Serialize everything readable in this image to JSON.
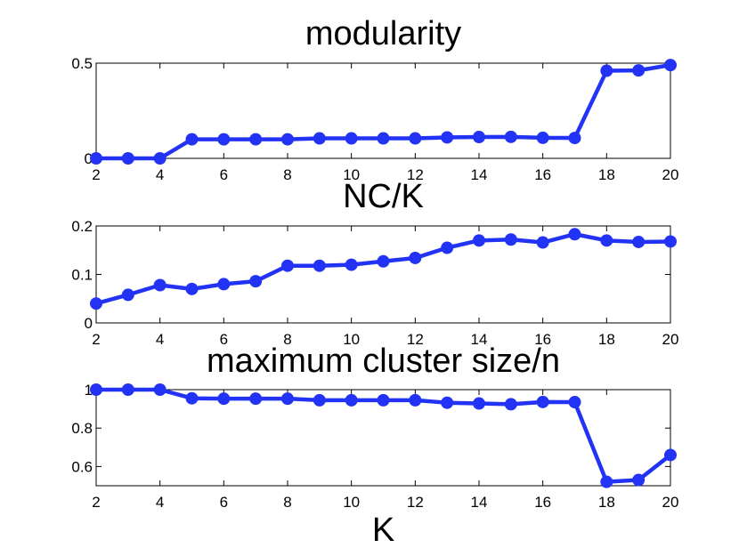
{
  "chart_data": [
    {
      "type": "line",
      "title": "modularity",
      "xlabel": "",
      "ylabel": "",
      "xlim": [
        2,
        20
      ],
      "ylim": [
        0,
        0.5
      ],
      "xticks": [
        2,
        4,
        6,
        8,
        10,
        12,
        14,
        16,
        18,
        20
      ],
      "xtick_labels": [
        "2",
        "4",
        "6",
        "8",
        "10",
        "12",
        "14",
        "16",
        "18",
        "20"
      ],
      "yticks": [
        0,
        0.5
      ],
      "ytick_labels": [
        "0",
        "0.5"
      ],
      "color": "#2233f5",
      "series": [
        {
          "name": "modularity",
          "x": [
            2,
            3,
            4,
            5,
            6,
            7,
            8,
            9,
            10,
            11,
            12,
            13,
            14,
            15,
            16,
            17,
            18,
            19,
            20
          ],
          "y": [
            0,
            0,
            0,
            0.1,
            0.1,
            0.1,
            0.1,
            0.105,
            0.105,
            0.105,
            0.105,
            0.11,
            0.112,
            0.113,
            0.108,
            0.107,
            0.46,
            0.462,
            0.49
          ]
        }
      ]
    },
    {
      "type": "line",
      "title": "NC/K",
      "xlabel": "",
      "ylabel": "",
      "xlim": [
        2,
        20
      ],
      "ylim": [
        0,
        0.2
      ],
      "xticks": [
        2,
        4,
        6,
        8,
        10,
        12,
        14,
        16,
        18,
        20
      ],
      "xtick_labels": [
        "2",
        "4",
        "6",
        "8",
        "10",
        "12",
        "14",
        "16",
        "18",
        "20"
      ],
      "yticks": [
        0,
        0.1,
        0.2
      ],
      "ytick_labels": [
        "0",
        "0.1",
        "0.2"
      ],
      "color": "#2233f5",
      "series": [
        {
          "name": "NC/K",
          "x": [
            2,
            3,
            4,
            5,
            6,
            7,
            8,
            9,
            10,
            11,
            12,
            13,
            14,
            15,
            16,
            17,
            18,
            19,
            20
          ],
          "y": [
            0.04,
            0.058,
            0.078,
            0.07,
            0.08,
            0.086,
            0.118,
            0.118,
            0.12,
            0.127,
            0.134,
            0.155,
            0.17,
            0.172,
            0.166,
            0.183,
            0.17,
            0.167,
            0.168
          ]
        }
      ]
    },
    {
      "type": "line",
      "title": "maximum cluster size/n",
      "xlabel": "K",
      "ylabel": "",
      "xlim": [
        2,
        20
      ],
      "ylim": [
        0.5,
        1
      ],
      "xticks": [
        2,
        4,
        6,
        8,
        10,
        12,
        14,
        16,
        18,
        20
      ],
      "xtick_labels": [
        "2",
        "4",
        "6",
        "8",
        "10",
        "12",
        "14",
        "16",
        "18",
        "20"
      ],
      "yticks": [
        0.6,
        0.8,
        1
      ],
      "ytick_labels": [
        "0.6",
        "0.8",
        "1"
      ],
      "color": "#2233f5",
      "series": [
        {
          "name": "maximum cluster size/n",
          "x": [
            2,
            3,
            4,
            5,
            6,
            7,
            8,
            9,
            10,
            11,
            12,
            13,
            14,
            15,
            16,
            17,
            18,
            19,
            20
          ],
          "y": [
            1.0,
            1.0,
            1.0,
            0.955,
            0.953,
            0.953,
            0.953,
            0.945,
            0.945,
            0.945,
            0.945,
            0.932,
            0.928,
            0.924,
            0.936,
            0.935,
            0.52,
            0.53,
            0.66
          ]
        }
      ]
    }
  ]
}
